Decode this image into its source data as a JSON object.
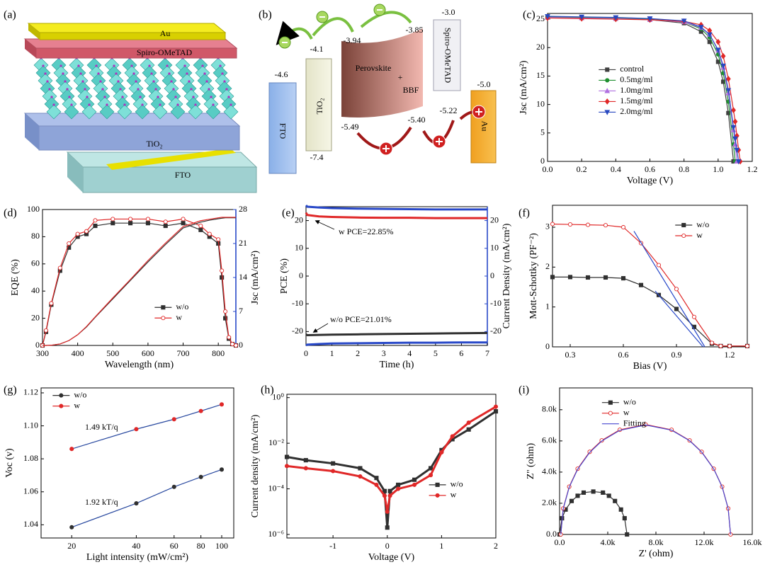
{
  "diagrams": {
    "a": {
      "label": "(a)",
      "layers": [
        "Au",
        "Spiro-OMeTAD",
        "TiO₂",
        "FTO"
      ]
    },
    "b": {
      "label": "(b)",
      "fto": {
        "name": "FTO",
        "top": "-4.6"
      },
      "tio2": {
        "name": "TiO₂",
        "top": "-4.1",
        "bottom": "-7.4"
      },
      "perovskite": {
        "name": "Perovskite",
        "plus": "+",
        "additive": "BBF",
        "top": "-3.94",
        "bottom": "-5.49"
      },
      "bbf": {
        "top": "-3.85",
        "bottom": "-5.40"
      },
      "spiro": {
        "name": "Spiro-OMeTAD",
        "top": "-3.0",
        "bottom": "-5.22"
      },
      "au": {
        "name": "Au",
        "level": "-5.0"
      }
    }
  },
  "chart_data": [
    {
      "type": "line",
      "label": "(c)",
      "xlabel": "Voltage (V)",
      "ylabel": "Jsc (mA/cm²)",
      "x": [
        0,
        0.2,
        0.4,
        0.6,
        0.8,
        0.9,
        0.95,
        1.0,
        1.03,
        1.06,
        1.09,
        1.1,
        1.11,
        1.12,
        1.13
      ],
      "xlim": [
        0,
        1.2
      ],
      "xticks": [
        {
          "value": 0,
          "label": "0.0"
        },
        0.2,
        0.4,
        0.6,
        0.8,
        {
          "value": 1,
          "label": "1.0"
        },
        1.2
      ],
      "ylim": [
        0,
        26
      ],
      "yticks": [
        0,
        5,
        10,
        15,
        20,
        25
      ],
      "legend": "center",
      "series": [
        {
          "name": "control",
          "color": "#404040",
          "marker": "square",
          "values": [
            25.3,
            25.2,
            25.1,
            24.9,
            24.3,
            22.8,
            21,
            17.5,
            14,
            8.5,
            0,
            null,
            null,
            null,
            null
          ]
        },
        {
          "name": "0.5mg/ml",
          "color": "#1f8f2f",
          "marker": "circle",
          "values": [
            25.4,
            25.3,
            25.2,
            25.0,
            24.5,
            23.3,
            21.8,
            18.8,
            15.5,
            10.5,
            3,
            0,
            null,
            null,
            null
          ]
        },
        {
          "name": "1.0mg/ml",
          "color": "#b070e0",
          "marker": "triangle",
          "values": [
            25.3,
            25.2,
            25.1,
            24.9,
            24.5,
            23.5,
            22.3,
            19.5,
            16.5,
            12,
            5.5,
            3,
            0,
            null,
            null
          ]
        },
        {
          "name": "1.5mg/ml",
          "color": "#e02828",
          "marker": "diamond",
          "values": [
            25.2,
            25.1,
            25.0,
            24.9,
            24.6,
            24,
            23,
            21,
            18.5,
            14.5,
            9,
            7,
            4.5,
            2,
            0
          ]
        },
        {
          "name": "2.0mg/ml",
          "color": "#2848c0",
          "marker": "triangle-down",
          "values": [
            25.5,
            25.4,
            25.3,
            25.1,
            24.7,
            23.6,
            22.3,
            19.6,
            16.8,
            12.5,
            6,
            4,
            2,
            0,
            null
          ]
        }
      ]
    },
    {
      "type": "line",
      "label": "(d)",
      "xlabel": "Wavelength (nm)",
      "ylabel": "EQE (%)",
      "y2label": "Jsc (mA/cm²)",
      "y2color": "#2848c8",
      "x": [
        300,
        310,
        325,
        350,
        375,
        400,
        425,
        450,
        500,
        550,
        600,
        650,
        700,
        750,
        775,
        800,
        810,
        820,
        830,
        840,
        850
      ],
      "xlim": [
        300,
        850
      ],
      "xticks": [
        300,
        400,
        500,
        600,
        700,
        800
      ],
      "ylim": [
        0,
        100
      ],
      "yticks": [
        0,
        20,
        40,
        60,
        80,
        100
      ],
      "y2lim": [
        0,
        28
      ],
      "y2ticks": [
        0,
        7,
        14,
        21,
        28
      ],
      "legend": "lower center",
      "series": [
        {
          "name": "w/o",
          "color": "#303030",
          "marker": "square",
          "values": [
            0,
            10,
            30,
            55,
            72,
            80,
            82,
            88,
            90,
            90,
            90,
            88,
            90,
            85,
            80,
            75,
            50,
            20,
            5,
            1,
            0
          ]
        },
        {
          "name": "w",
          "color": "#e02828",
          "marker": "circle",
          "open": true,
          "values": [
            0,
            11,
            31,
            57,
            75,
            82,
            84,
            92,
            93,
            93,
            93,
            91,
            93,
            88,
            82,
            78,
            55,
            25,
            6,
            1,
            0
          ]
        },
        {
          "color": "#303030",
          "axis": "y2",
          "values": [
            0,
            0,
            0.05,
            0.3,
            1.0,
            2.2,
            3.8,
            5.8,
            9.6,
            13.4,
            17.2,
            20.8,
            24.2,
            25.4,
            25.8,
            26.1,
            26.2,
            26.3,
            26.3,
            26.3,
            26.3
          ]
        },
        {
          "color": "#e02828",
          "axis": "y2",
          "values": [
            0,
            0,
            0.05,
            0.3,
            1.0,
            2.2,
            3.9,
            5.9,
            9.8,
            13.6,
            17.5,
            21.1,
            24.5,
            25.7,
            26.0,
            26.3,
            26.4,
            26.4,
            26.4,
            26.4,
            26.4
          ]
        }
      ]
    },
    {
      "type": "line",
      "label": "(e)",
      "xlabel": "Time (h)",
      "ylabel": "PCE (%)",
      "y2label": "Current Density (mA/cm²)",
      "y2color": "#2848c8",
      "x": [
        0,
        0.05,
        0.5,
        1,
        2,
        3,
        4,
        5,
        6,
        7
      ],
      "xlim": [
        0,
        7
      ],
      "xticks": [
        0,
        1,
        2,
        3,
        4,
        5,
        6,
        7
      ],
      "ylim": [
        -25,
        25
      ],
      "yticks": [
        -20,
        -10,
        0,
        10,
        20
      ],
      "y2lim": [
        -25,
        25
      ],
      "y2ticks": [
        -20,
        -10,
        0,
        10,
        20
      ],
      "annotations": [
        "w  PCE=22.85%",
        "w/o  PCE=21.01%"
      ],
      "series": [
        {
          "color": "#e02828",
          "width": 3,
          "values": [
            22.85,
            22,
            21.5,
            21.3,
            21.1,
            21,
            21,
            20.9,
            20.9,
            20.9
          ]
        },
        {
          "color": "#303030",
          "width": 3,
          "values": [
            -21.01,
            -21.3,
            -21.2,
            -21.1,
            -21,
            -20.9,
            -20.8,
            -20.7,
            -20.6,
            -20.5
          ]
        },
        {
          "color": "#2848c8",
          "width": 3,
          "axis": "y2",
          "values": [
            25.5,
            25,
            24.7,
            24.5,
            24.3,
            24.2,
            24.1,
            24,
            24,
            24
          ]
        },
        {
          "color": "#2848c8",
          "width": 3,
          "axis": "y2",
          "values": [
            -25,
            -24.7,
            -24.5,
            -24.3,
            -24.2,
            -24.1,
            -24,
            -24,
            -23.9,
            -23.9
          ]
        }
      ]
    },
    {
      "type": "line",
      "label": "(f)",
      "xlabel": "Bias (V)",
      "ylabel": "Mott-Schottky (PF⁻²)",
      "x": [
        0.2,
        0.3,
        0.4,
        0.5,
        0.6,
        0.7,
        0.8,
        0.9,
        1.0,
        1.1,
        1.15,
        1.2,
        1.3
      ],
      "xlim": [
        0.2,
        1.3
      ],
      "xticks": [
        0.3,
        0.6,
        0.9,
        1.2
      ],
      "ylim": [
        0,
        3.55
      ],
      "yticks": [
        0,
        1,
        2,
        3
      ],
      "legend": "upper right",
      "series": [
        {
          "name": "w/o",
          "color": "#303030",
          "marker": "square",
          "values": [
            1.75,
            1.75,
            1.74,
            1.74,
            1.72,
            1.55,
            1.3,
            0.95,
            0.5,
            0.08,
            0.02,
            0.02,
            0.02
          ]
        },
        {
          "name": "w",
          "color": "#e02828",
          "marker": "circle",
          "open": true,
          "values": [
            3.08,
            3.07,
            3.06,
            3.05,
            3.0,
            2.6,
            2.05,
            1.45,
            0.75,
            0.1,
            0.02,
            0.02,
            0.02
          ]
        },
        {
          "color": "#2848c8",
          "x": [
            0.66,
            1.06
          ],
          "values": [
            2.9,
            0
          ]
        },
        {
          "color": "#2848c8",
          "x": [
            0.78,
            1.05
          ],
          "values": [
            1.4,
            0
          ]
        }
      ]
    },
    {
      "type": "scatter",
      "label": "(g)",
      "xlabel": "Light intensity (mW/cm²)",
      "ylabel": "Voc (v)",
      "xscale": "log",
      "x": [
        20,
        40,
        60,
        80,
        100
      ],
      "xlim": [
        14.4,
        113.8
      ],
      "xticks": [
        20,
        40,
        60,
        80,
        100
      ],
      "ylim": [
        1.032,
        1.123
      ],
      "yticks": [
        1.04,
        1.06,
        1.08,
        {
          "value": 1.1,
          "label": "1.10"
        },
        1.12
      ],
      "legend": "upper left",
      "annotations": [
        "1.49 kT/q",
        "1.92 kT/q"
      ],
      "series": [
        {
          "name": "w/o",
          "color": "#303030",
          "marker": "circle",
          "line_color": "#2a4aa0",
          "values": [
            1.0385,
            1.053,
            1.063,
            1.069,
            1.0735
          ]
        },
        {
          "name": "w",
          "color": "#e02828",
          "marker": "circle",
          "line_color": "#2a4aa0",
          "values": [
            1.086,
            1.098,
            1.104,
            1.109,
            1.113
          ]
        }
      ]
    },
    {
      "type": "line",
      "label": "(h)",
      "xlabel": "Voltage (V)",
      "ylabel": "Current density (mA/cm²)",
      "yscale": "log",
      "x": [
        -1.85,
        -1.5,
        -1,
        -0.5,
        -0.2,
        -0.05,
        0,
        0.05,
        0.2,
        0.5,
        0.8,
        1,
        1.2,
        1.5,
        2
      ],
      "xlim": [
        -1.85,
        2
      ],
      "xticks": [
        -1,
        0,
        1,
        2
      ],
      "ylim": [
        7e-07,
        1.4
      ],
      "yticks": [
        {
          "value": 1e-06,
          "label": "10⁻⁶"
        },
        {
          "value": 0.0001,
          "label": "10⁻⁴"
        },
        {
          "value": 0.01,
          "label": "10⁻²"
        },
        {
          "value": 1,
          "label": "10⁰"
        }
      ],
      "legend": "lower right",
      "series": [
        {
          "name": "w/o",
          "color": "#303030",
          "marker": "square",
          "width": 3,
          "values": [
            0.0025,
            0.0018,
            0.0013,
            0.0008,
            0.0003,
            8e-05,
            2e-06,
            8e-05,
            0.00015,
            0.00025,
            0.0008,
            0.005,
            0.015,
            0.04,
            0.25
          ]
        },
        {
          "name": "w",
          "color": "#e02828",
          "marker": "circle",
          "width": 3,
          "values": [
            0.001,
            0.0008,
            0.0006,
            0.00035,
            0.00015,
            5e-05,
            1e-05,
            5e-05,
            0.0001,
            0.00015,
            0.0004,
            0.004,
            0.02,
            0.08,
            0.4
          ]
        }
      ]
    },
    {
      "type": "line",
      "label": "(i)",
      "xlabel": "Z' (ohm)",
      "ylabel": "Z'' (ohm)",
      "xlim": [
        0,
        16000
      ],
      "xticks": [
        {
          "value": 0,
          "label": "0.0"
        },
        {
          "value": 4000,
          "label": "4.0k"
        },
        {
          "value": 8000,
          "label": "8.0k"
        },
        {
          "value": 12000,
          "label": "12.0k"
        },
        {
          "value": 16000,
          "label": "16.0k"
        }
      ],
      "ylim": [
        0,
        9400
      ],
      "yticks": [
        {
          "value": 0,
          "label": "0.0"
        },
        {
          "value": 2000,
          "label": "2.0k"
        },
        {
          "value": 4000,
          "label": "4.0k"
        },
        {
          "value": 6000,
          "label": "6.0k"
        },
        {
          "value": 8000,
          "label": "8.0k"
        }
      ],
      "legend": "upper center",
      "series": [
        {
          "name": "w/o",
          "color": "#303030",
          "marker": "square",
          "x": [
            0,
            200,
            500,
            1000,
            1500,
            2000,
            2800,
            3600,
            4100,
            4600,
            5100,
            5400,
            5600
          ],
          "values": [
            0,
            1039,
            1597,
            2145,
            2480,
            2683,
            2750,
            2683,
            2480,
            2145,
            1597,
            1039,
            0
          ]
        },
        {
          "name": "w",
          "color": "#e02828",
          "marker": "circle",
          "open": true,
          "x": [
            100,
            300,
            800,
            1500,
            2500,
            3500,
            5000,
            7150,
            9300,
            10800,
            11800,
            12800,
            13500,
            14000,
            14200
          ],
          "values": [
            0,
            1667,
            3063,
            4216,
            5299,
            6031,
            6714,
            7050,
            6714,
            6031,
            5299,
            4216,
            3063,
            1667,
            0
          ]
        },
        {
          "name": "Fitting",
          "color": "#4848d0",
          "x": [
            100,
            300,
            800,
            1500,
            2500,
            3500,
            5000,
            7150,
            9300,
            10800,
            11800,
            12800,
            13500,
            14000,
            14200
          ],
          "values": [
            0,
            1640,
            3030,
            4180,
            5260,
            5990,
            6680,
            7020,
            6690,
            6010,
            5280,
            4200,
            3050,
            1660,
            0
          ]
        }
      ]
    }
  ]
}
